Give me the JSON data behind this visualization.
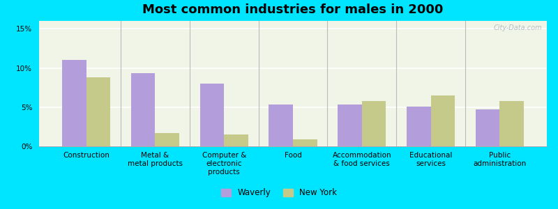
{
  "title": "Most common industries for males in 2000",
  "categories": [
    "Construction",
    "Metal &\nmetal products",
    "Computer &\nelectronic\nproducts",
    "Food",
    "Accommodation\n& food services",
    "Educational\nservices",
    "Public\nadministration"
  ],
  "waverly": [
    11.0,
    9.3,
    8.0,
    5.3,
    5.3,
    5.1,
    4.7
  ],
  "new_york": [
    8.8,
    1.7,
    1.5,
    0.9,
    5.8,
    6.5,
    5.8
  ],
  "waverly_color": "#b39ddb",
  "new_york_color": "#c5c98a",
  "ylim": [
    0,
    16
  ],
  "yticks": [
    0,
    5,
    10,
    15
  ],
  "ytick_labels": [
    "0%",
    "5%",
    "10%",
    "15%"
  ],
  "bar_width": 0.35,
  "plot_bg": "#f0f5e8",
  "outer_bg": "#00e5ff",
  "legend_waverly": "Waverly",
  "legend_new_york": "New York",
  "title_fontsize": 13,
  "tick_fontsize": 7.5,
  "legend_fontsize": 8.5,
  "watermark": "City-Data.com"
}
